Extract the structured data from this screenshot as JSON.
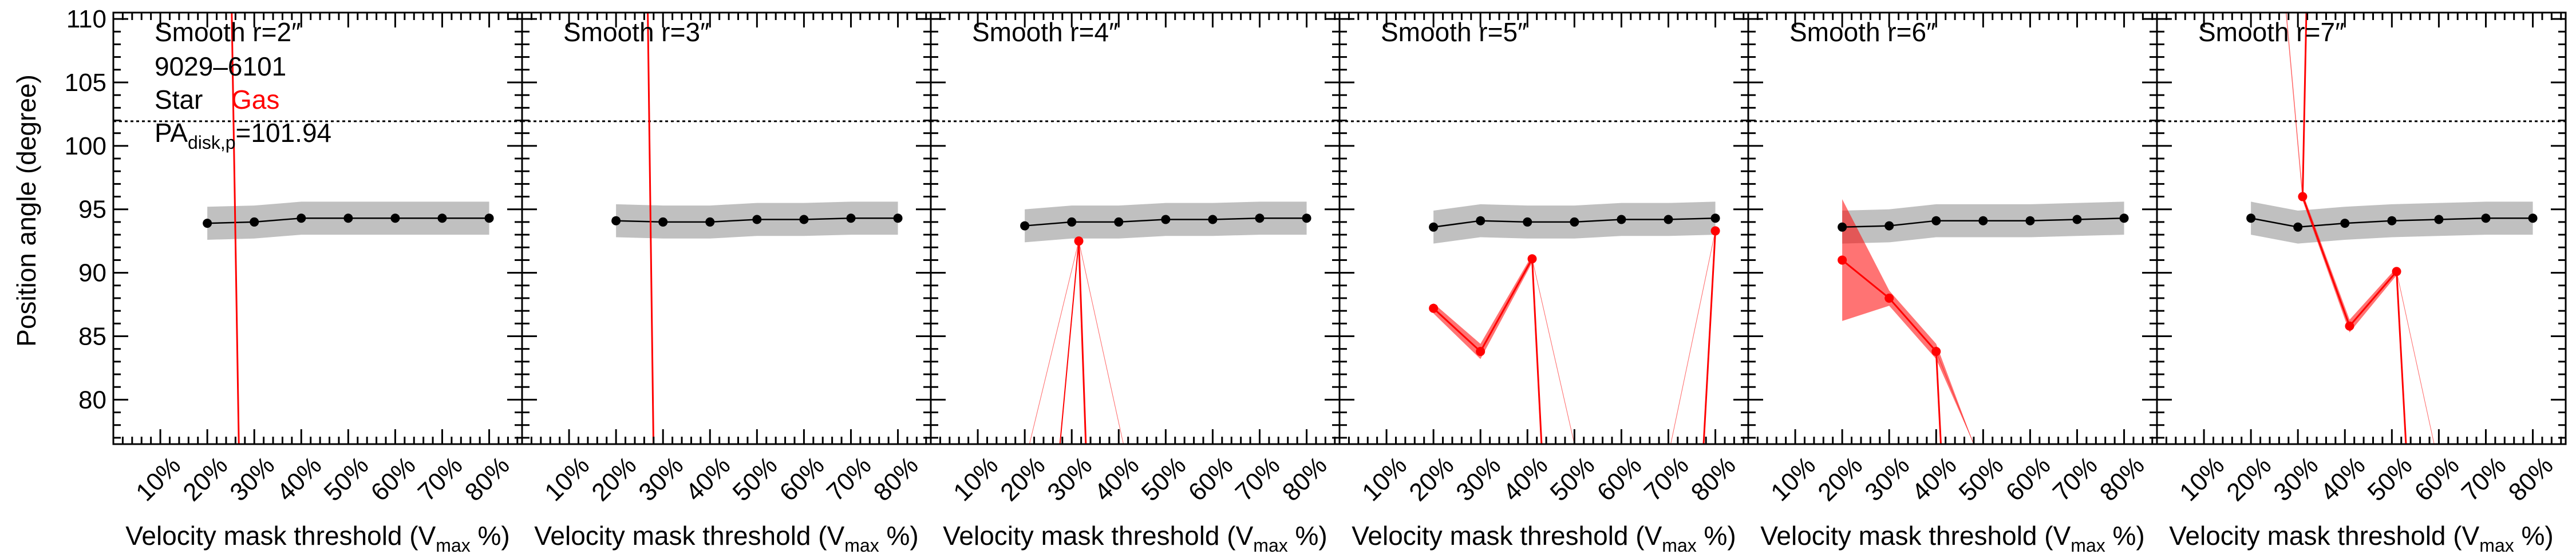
{
  "chart_data": {
    "type": "line",
    "ylabel": "Position angle (degree)",
    "ylim": [
      76.5,
      110.5
    ],
    "yticks": [
      80,
      85,
      90,
      95,
      100,
      105,
      110
    ],
    "xlim": [
      0,
      87
    ],
    "xticks": [
      10,
      20,
      30,
      40,
      50,
      60,
      70,
      80
    ],
    "xtick_labels": [
      "10%",
      "20%",
      "30%",
      "40%",
      "50%",
      "60%",
      "70%",
      "80%"
    ],
    "xlabel_main": "Velocity mask threshold (V",
    "xlabel_sub": "max",
    "xlabel_end": " %)",
    "reference_line": {
      "value": 101.94,
      "style": "dotted"
    },
    "legend_lines": {
      "object_id": "9029–6101",
      "star_label": "Star",
      "gas_label": "Gas",
      "pa_main": "PA",
      "pa_sub": "disk,p",
      "pa_value": "=101.94"
    },
    "colors": {
      "star": "#000000",
      "star_band": "#c0c0c0",
      "gas": "#ff0000"
    },
    "panels": [
      {
        "title": "Smooth r=2″",
        "star": {
          "x": [
            20,
            30,
            40,
            50,
            60,
            70,
            80
          ],
          "y": [
            93.9,
            94.0,
            94.3,
            94.3,
            94.3,
            94.3,
            94.3
          ],
          "band": [
            1.3,
            1.3,
            1.3,
            1.3,
            1.3,
            1.3,
            1.3
          ]
        },
        "gas_lines": [
          {
            "x": [
              25.0,
              27.0
            ],
            "y": [
              115.0,
              70.0
            ],
            "width": 3
          }
        ],
        "gas_points": []
      },
      {
        "title": "Smooth r=3″",
        "star": {
          "x": [
            20,
            30,
            40,
            50,
            60,
            70,
            80
          ],
          "y": [
            94.1,
            94.0,
            94.0,
            94.2,
            94.2,
            94.3,
            94.3
          ],
          "band": [
            1.3,
            1.3,
            1.3,
            1.3,
            1.3,
            1.3,
            1.3
          ]
        },
        "gas_lines": [
          {
            "x": [
              26.6,
              28.2
            ],
            "y": [
              115.0,
              70.0
            ],
            "width": 3
          }
        ],
        "gas_points": []
      },
      {
        "title": "Smooth r=4″",
        "star": {
          "x": [
            20,
            30,
            40,
            50,
            60,
            70,
            80
          ],
          "y": [
            93.7,
            94.0,
            94.0,
            94.2,
            94.2,
            94.3,
            94.3
          ],
          "band": [
            1.3,
            1.3,
            1.3,
            1.3,
            1.3,
            1.3,
            1.3
          ]
        },
        "gas_lines": [
          {
            "x": [
              21.0,
              31.5
            ],
            "y": [
              76.5,
              92.5
            ],
            "width": 1
          },
          {
            "x": [
              31.5,
              27.5
            ],
            "y": [
              92.5,
              76.5
            ],
            "width": 2
          },
          {
            "x": [
              31.5,
              33.0
            ],
            "y": [
              92.5,
              76.5
            ],
            "width": 3
          },
          {
            "x": [
              31.5,
              41.0
            ],
            "y": [
              92.5,
              76.5
            ],
            "width": 1
          }
        ],
        "gas_points": [
          {
            "x": 31.5,
            "y": 92.5
          }
        ]
      },
      {
        "title": "Smooth r=5″",
        "star": {
          "x": [
            20,
            30,
            40,
            50,
            60,
            70,
            80
          ],
          "y": [
            93.6,
            94.1,
            94.0,
            94.0,
            94.2,
            94.2,
            94.3
          ],
          "band": [
            1.3,
            1.3,
            1.3,
            1.3,
            1.3,
            1.3,
            1.3
          ]
        },
        "gas_lines": [
          {
            "x": [
              20,
              30,
              41
            ],
            "y": [
              87.2,
              83.8,
              91.1
            ],
            "width": 3
          },
          {
            "x": [
              41,
              43
            ],
            "y": [
              91.1,
              76.5
            ],
            "width": 3
          },
          {
            "x": [
              41,
              50
            ],
            "y": [
              91.1,
              76.5
            ],
            "width": 1
          },
          {
            "x": [
              80,
              70.5
            ],
            "y": [
              93.3,
              76.5
            ],
            "width": 1
          },
          {
            "x": [
              80,
              77.5
            ],
            "y": [
              93.3,
              76.5
            ],
            "width": 3
          }
        ],
        "gas_bands": [
          {
            "x": [
              20,
              30,
              41
            ],
            "upper": [
              87.6,
              84.4,
              91.4
            ],
            "lower": [
              86.8,
              83.2,
              90.8
            ]
          }
        ],
        "gas_points": [
          {
            "x": 20,
            "y": 87.2
          },
          {
            "x": 30,
            "y": 83.8
          },
          {
            "x": 41,
            "y": 91.1
          },
          {
            "x": 80,
            "y": 93.3
          }
        ]
      },
      {
        "title": "Smooth r=6″",
        "star": {
          "x": [
            20,
            30,
            40,
            50,
            60,
            70,
            80
          ],
          "y": [
            93.6,
            93.7,
            94.1,
            94.1,
            94.1,
            94.2,
            94.3
          ],
          "band": [
            1.3,
            1.3,
            1.3,
            1.3,
            1.3,
            1.3,
            1.3
          ]
        },
        "gas_lines": [
          {
            "x": [
              20,
              30,
              40
            ],
            "y": [
              91.0,
              88.0,
              83.8
            ],
            "width": 3
          },
          {
            "x": [
              40,
              41
            ],
            "y": [
              83.8,
              76.5
            ],
            "width": 3
          },
          {
            "x": [
              40,
              48
            ],
            "y": [
              83.8,
              76.5
            ],
            "width": 1
          }
        ],
        "gas_bands": [
          {
            "x": [
              20,
              30,
              40,
              48
            ],
            "upper": [
              95.8,
              88.6,
              84.4,
              76.5
            ],
            "lower": [
              86.2,
              87.4,
              83.2,
              76.5
            ]
          }
        ],
        "gas_points": [
          {
            "x": 20,
            "y": 91.0
          },
          {
            "x": 30,
            "y": 88.0
          },
          {
            "x": 40,
            "y": 83.8
          }
        ]
      },
      {
        "title": "Smooth r=7″",
        "star": {
          "x": [
            20,
            30,
            40,
            50,
            60,
            70,
            80
          ],
          "y": [
            94.3,
            93.6,
            93.9,
            94.1,
            94.2,
            94.3,
            94.3
          ],
          "band": [
            1.3,
            1.3,
            1.3,
            1.3,
            1.3,
            1.3,
            1.3
          ]
        },
        "gas_lines": [
          {
            "x": [
              31.8,
              31
            ],
            "y": [
              110.5,
              96.0
            ],
            "width": 3
          },
          {
            "x": [
              27.5,
              31
            ],
            "y": [
              110.5,
              96.0
            ],
            "width": 1.5
          },
          {
            "x": [
              31,
              41,
              51
            ],
            "y": [
              96.0,
              85.8,
              90.1
            ],
            "width": 3
          },
          {
            "x": [
              51,
              53
            ],
            "y": [
              90.1,
              76.5
            ],
            "width": 3
          },
          {
            "x": [
              51,
              59
            ],
            "y": [
              90.1,
              76.5
            ],
            "width": 1
          }
        ],
        "gas_bands": [
          {
            "x": [
              31,
              41,
              51
            ],
            "upper": [
              96.3,
              86.3,
              90.4
            ],
            "lower": [
              95.7,
              85.3,
              89.8
            ]
          }
        ],
        "gas_points": [
          {
            "x": 31,
            "y": 96.0
          },
          {
            "x": 41,
            "y": 85.8
          },
          {
            "x": 51,
            "y": 90.1
          }
        ]
      }
    ]
  }
}
